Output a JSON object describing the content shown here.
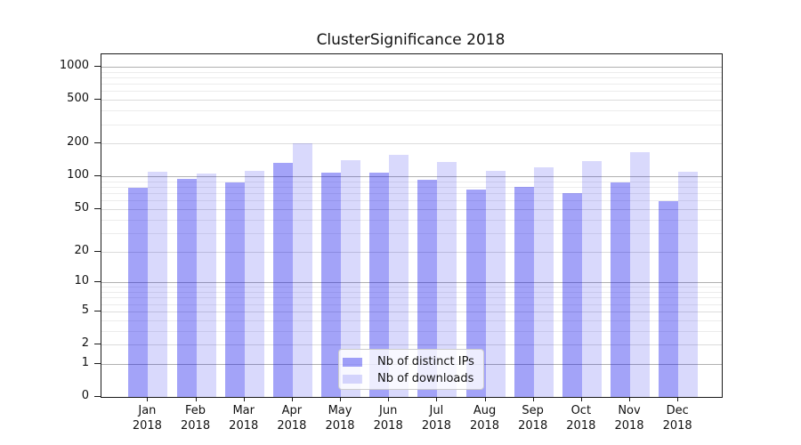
{
  "chart_data": {
    "type": "bar",
    "title": "ClusterSignificance 2018",
    "categories": [
      "Jan",
      "Feb",
      "Mar",
      "Apr",
      "May",
      "Jun",
      "Jul",
      "Aug",
      "Sep",
      "Oct",
      "Nov",
      "Dec"
    ],
    "year_label": "2018",
    "series": [
      {
        "name": "Nb of distinct IPs",
        "color": "rgba(0,0,235,0.36)",
        "values": [
          79,
          94,
          88,
          134,
          108,
          109,
          93,
          76,
          80,
          70,
          88,
          59
        ]
      },
      {
        "name": "Nb of downloads",
        "color": "rgba(0,0,235,0.15)",
        "values": [
          110,
          107,
          112,
          200,
          140,
          158,
          135,
          112,
          120,
          137,
          168,
          110
        ]
      }
    ],
    "yscale": "symlog-ln(1+x)",
    "y_ticks": [
      0,
      1,
      2,
      5,
      10,
      20,
      50,
      100,
      200,
      500,
      1000
    ],
    "y_decade_ticks": [
      1,
      10,
      100,
      1000
    ],
    "y_minor_gridlines": [
      3,
      4,
      6,
      7,
      8,
      9,
      30,
      40,
      60,
      70,
      80,
      90,
      300,
      400,
      600,
      700,
      800,
      900
    ],
    "ylim": [
      0,
      1290
    ],
    "grid": true,
    "legend_position": "lower center"
  },
  "colors": {
    "decade_gridline": "#b0b0b0",
    "tick_gridline": "#dcdcdc",
    "minor_gridline": "#ececec",
    "spine": "#1a1a1a",
    "text": "#111111",
    "legend_border": "#cccccc",
    "legend_background": "rgba(255,255,255,0.8)"
  }
}
